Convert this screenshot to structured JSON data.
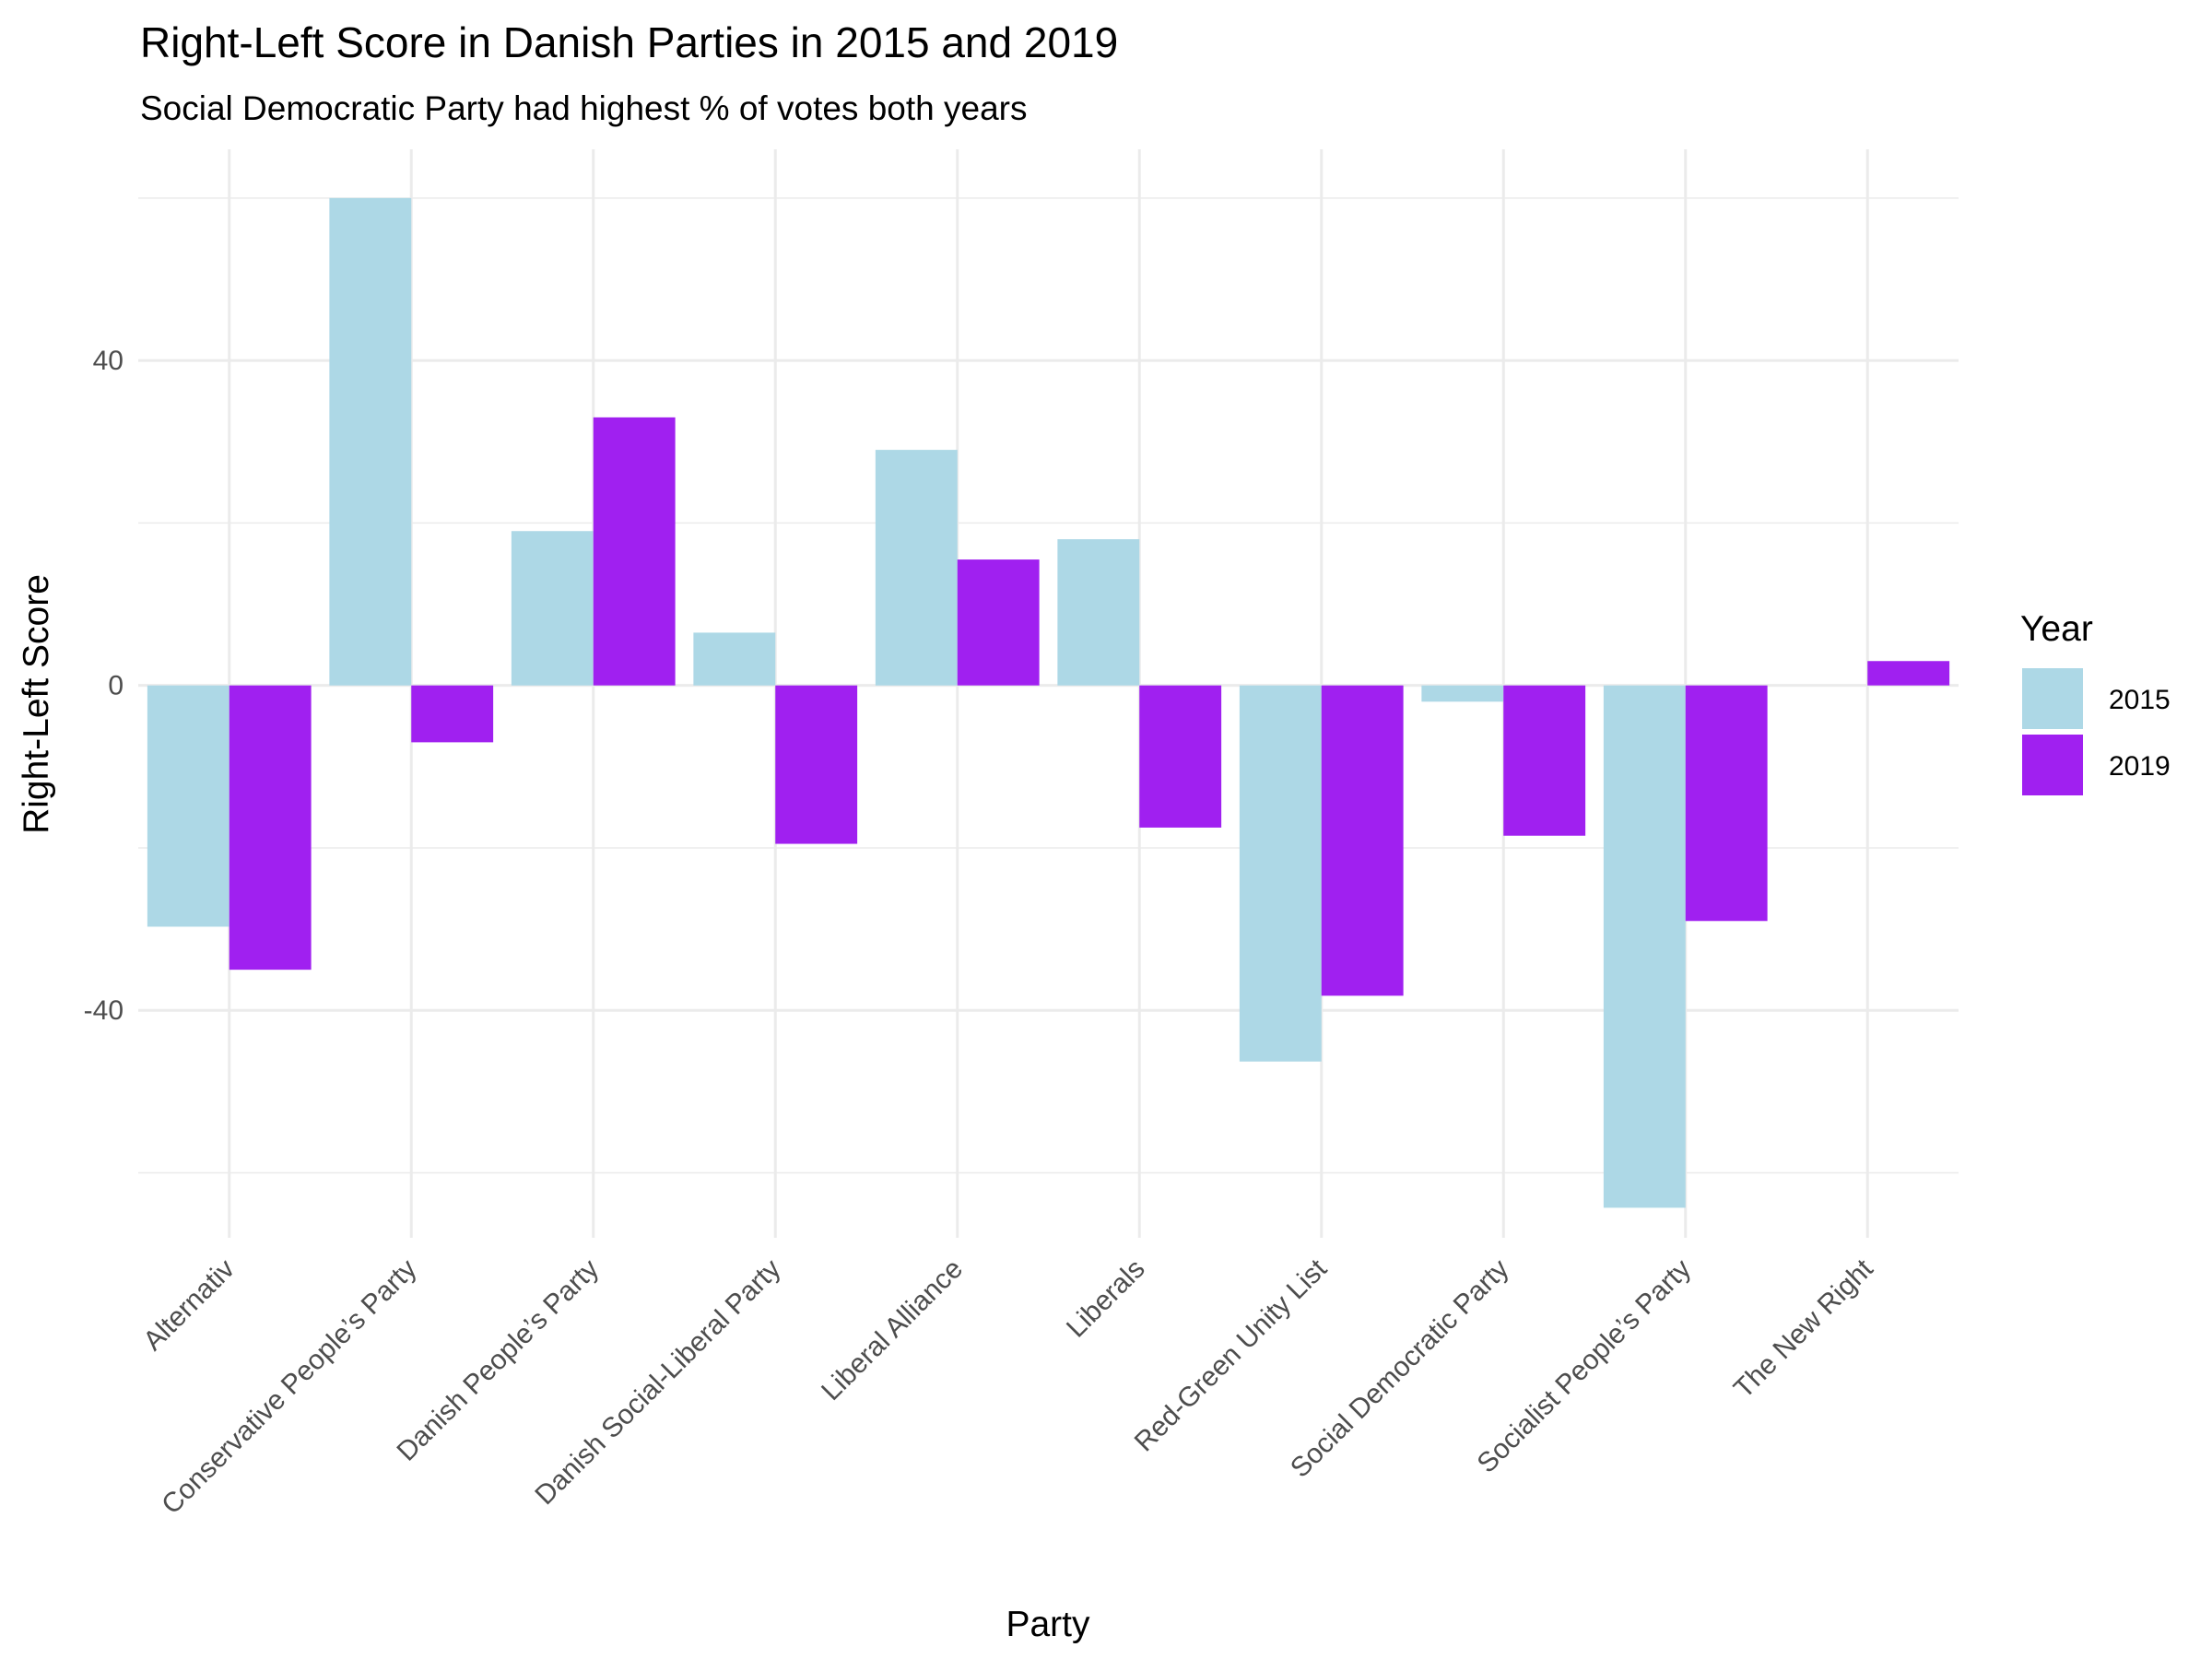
{
  "chart_data": {
    "type": "bar",
    "title": "Right-Left Score in Danish Parties in 2015 and 2019",
    "subtitle": "Social Democratic Party had highest % of votes both years",
    "xlabel": "Party",
    "ylabel": "Right-Left Score",
    "ylim": [
      -68,
      66
    ],
    "yticks": [
      -40,
      0,
      40
    ],
    "grid": true,
    "legend": {
      "title": "Year",
      "position": "right"
    },
    "categories": [
      "Alternativ",
      "Conservative People’s Party",
      "Danish People’s Party",
      "Danish Social-Liberal Party",
      "Liberal Alliance",
      "Liberals",
      "Red-Green Unity List",
      "Social Democratic Party",
      "Socialist People’s Party",
      "The New Right"
    ],
    "series": [
      {
        "name": "2015",
        "color": "#add8e6",
        "values": [
          -29.7,
          60,
          19,
          6.5,
          29,
          18,
          -46.3,
          -2,
          -64.3,
          null
        ]
      },
      {
        "name": "2019",
        "color": "#a020f0",
        "values": [
          -35,
          -7,
          33,
          -19.5,
          15.5,
          -17.5,
          -38.2,
          -18.5,
          -29,
          3
        ]
      }
    ]
  }
}
